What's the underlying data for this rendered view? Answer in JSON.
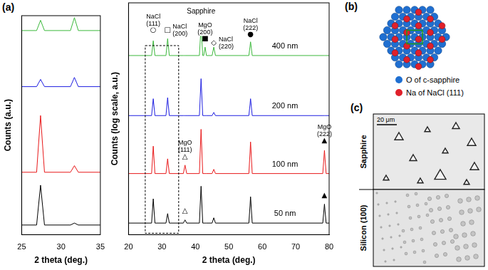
{
  "panel_labels": [
    "(a)",
    "(b)",
    "(c)"
  ],
  "chart_data": [
    {
      "type": "line",
      "x_label": "2 theta (deg.)",
      "y_label": "Counts (a.u.)",
      "x": [
        25,
        26.9,
        27.4,
        27.9,
        31.2,
        31.7,
        32.2,
        35
      ],
      "series": [
        {
          "color": "#000000",
          "values": [
            4.4,
            4.4,
            22.6,
            4.4,
            4.4,
            5.3,
            4.4,
            4.4
          ]
        },
        {
          "color": "#e8191a",
          "values": [
            28.5,
            28.5,
            54.4,
            28.5,
            28.5,
            31.5,
            28.5,
            28.5
          ]
        },
        {
          "color": "#1f1fe0",
          "values": [
            67.6,
            67.6,
            70.9,
            67.6,
            67.6,
            71.8,
            67.6,
            67.6
          ]
        },
        {
          "color": "#3cb83c",
          "values": [
            93.2,
            93.2,
            97.9,
            93.2,
            93.2,
            99.1,
            93.2,
            93.2
          ]
        }
      ],
      "xlim": [
        25,
        35
      ],
      "xticks": [
        25,
        30,
        35
      ],
      "ylim": [
        0,
        100
      ],
      "tick_labels": "x",
      "grid": false
    },
    {
      "type": "line",
      "x_label": "2 theta (deg.)",
      "y_label": "Counts (log scale, a.u.)",
      "x": [
        20,
        26.9,
        27.4,
        27.9,
        31.2,
        31.7,
        32.2,
        36.4,
        36.9,
        37.4,
        41.2,
        41.7,
        42.2,
        42.5,
        42.9,
        43.3,
        45,
        45.5,
        46,
        56,
        56.5,
        57,
        78.1,
        78.6,
        79.1,
        80
      ],
      "series": [
        {
          "name": "400 nm",
          "color": "#3cb83c",
          "values": [
            85,
            85,
            92,
            85,
            85,
            93,
            85,
            85,
            85,
            85,
            85,
            99,
            85,
            85,
            89,
            85,
            85,
            89,
            85,
            85,
            91.5,
            85,
            85,
            85,
            85,
            85
          ]
        },
        {
          "name": "200 nm",
          "color": "#1f1fe0",
          "values": [
            56.5,
            56.5,
            64.5,
            56.5,
            56.5,
            65,
            56.5,
            56.5,
            56.5,
            56.5,
            56.5,
            74,
            56.5,
            56.5,
            56.5,
            56.5,
            56.5,
            58,
            56.5,
            56.5,
            64.5,
            56.5,
            56.5,
            56.5,
            56.5,
            56.5
          ]
        },
        {
          "name": "100 nm",
          "color": "#e8191a",
          "values": [
            29,
            29,
            42,
            29,
            29,
            36,
            29,
            29,
            33,
            29,
            29,
            50,
            29,
            29,
            29,
            29,
            29,
            31,
            29,
            29,
            44,
            29,
            29,
            40,
            29,
            29
          ]
        },
        {
          "name": "50 nm",
          "color": "#000000",
          "values": [
            5.5,
            5.5,
            17,
            5.5,
            5.5,
            10,
            5.5,
            5.5,
            7,
            5.5,
            5.5,
            23,
            5.5,
            5.5,
            5.5,
            5.5,
            5.5,
            8,
            5.5,
            5.5,
            18,
            5.5,
            5.5,
            14.5,
            5.5,
            5.5
          ]
        }
      ],
      "xlim": [
        20,
        80
      ],
      "xticks": [
        20,
        30,
        40,
        50,
        60,
        70,
        80
      ],
      "ylim": [
        0,
        110
      ],
      "tick_labels": "x",
      "grid": false,
      "annotations": [
        {
          "symbol": "○",
          "label": "NaCl (111)",
          "x": 27.4,
          "y": 97
        },
        {
          "symbol": "□",
          "label": "NaCl (200)",
          "x": 31.7,
          "y": 97
        },
        {
          "label": "Sapphire",
          "x": 41.7,
          "y": 106
        },
        {
          "symbol": "■",
          "label": "MgO (200)",
          "x": 42.9,
          "y": 93
        },
        {
          "symbol": "◇",
          "label": "NaCl (220)",
          "x": 45.5,
          "y": 91
        },
        {
          "symbol": "●",
          "label": "NaCl (222)",
          "x": 56.5,
          "y": 95
        },
        {
          "symbol": "△",
          "label": "MgO (111)",
          "x": 36.9,
          "y": 37
        },
        {
          "symbol": "▲",
          "label": "MgO (222)",
          "x": 78.6,
          "y": 44.5
        },
        {
          "symbol": "△",
          "x": 36.9,
          "y": 11
        },
        {
          "symbol": "▲",
          "x": 78.6,
          "y": 18.5
        }
      ]
    }
  ],
  "diagram": {
    "legend": [
      {
        "label": "O of c-sapphire",
        "color": "#1f6fd1"
      },
      {
        "label": "Na of NaCl (111)",
        "color": "#e0202a"
      }
    ]
  },
  "micrographs": {
    "scale_bar": "20 μm",
    "rows": [
      "Sapphire",
      "Silicon (100)"
    ]
  }
}
